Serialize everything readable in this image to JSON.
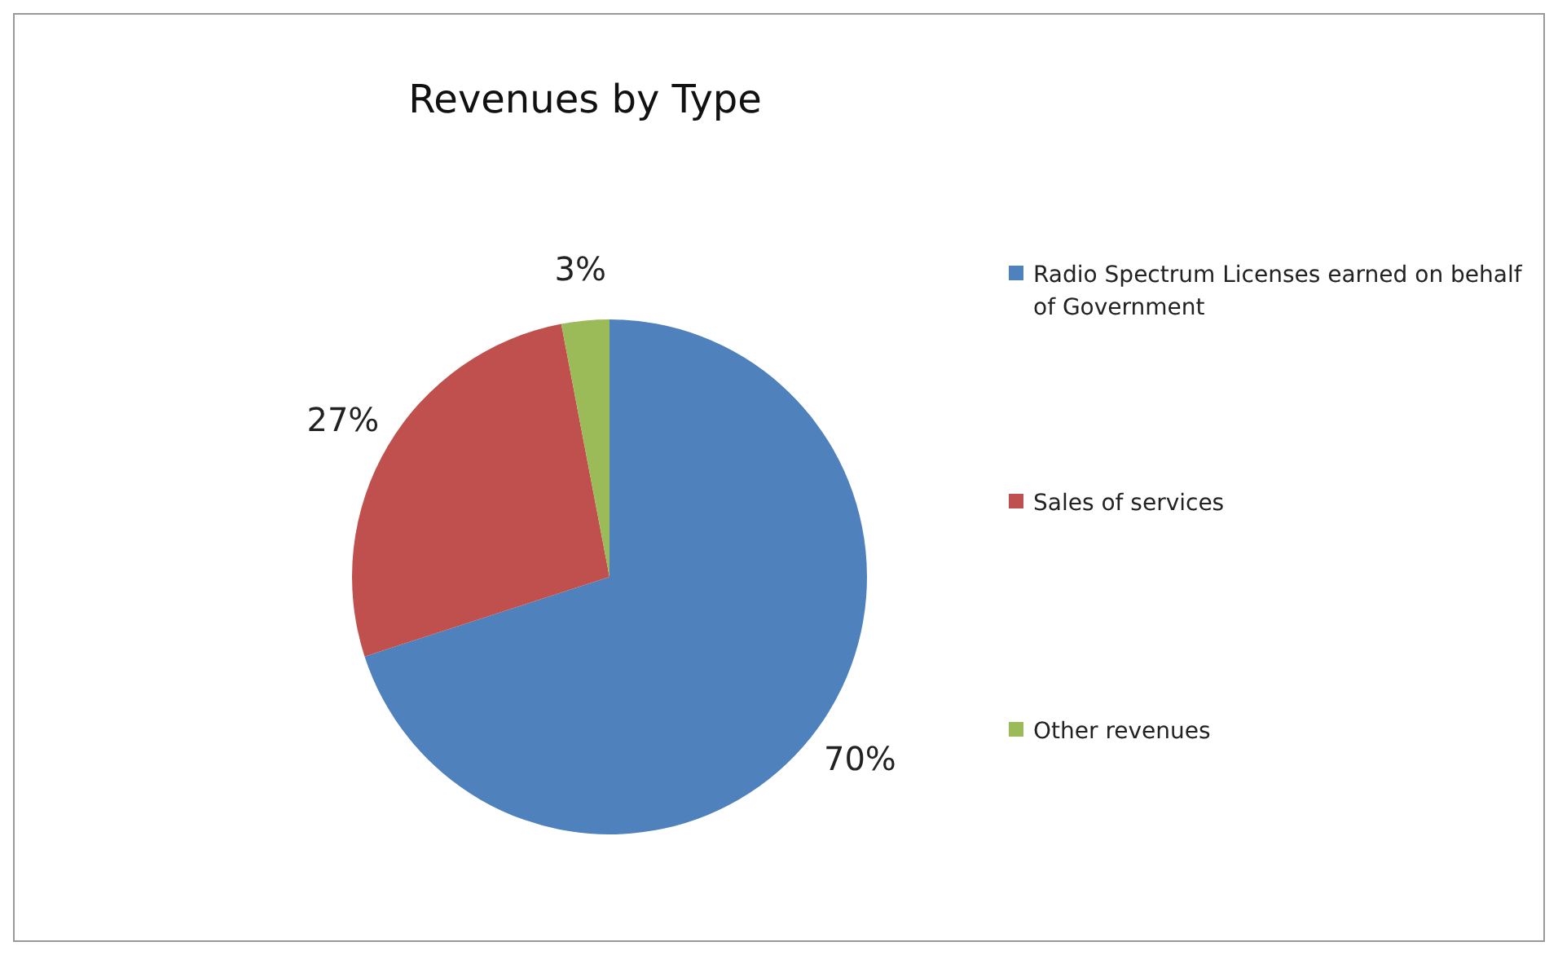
{
  "chart_data": {
    "type": "pie",
    "title": "Revenues by Type",
    "categories": [
      "Radio Spectrum Licenses earned on behalf of Government",
      "Sales of services",
      "Other revenues"
    ],
    "values": [
      70,
      27,
      3
    ],
    "colors": [
      "#4f81bd",
      "#c0504d",
      "#9bbb59"
    ],
    "value_labels": [
      "70%",
      "27%",
      "3%"
    ],
    "legend": "right"
  }
}
